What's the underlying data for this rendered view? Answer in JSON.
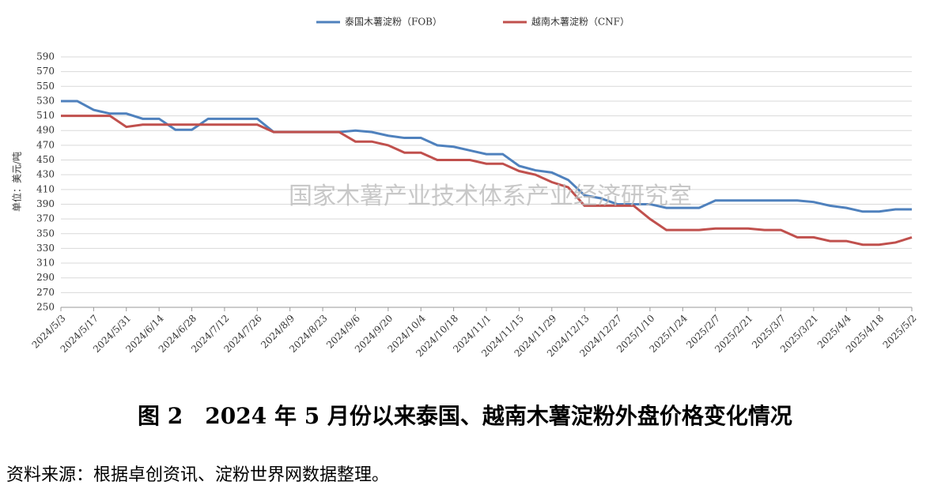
{
  "chart_data": {
    "type": "line",
    "y_label": "单位：美元/吨",
    "watermark": "国家木薯产业技术体系产业经济研究室",
    "categories": [
      "2024/5/3",
      null,
      "2024/5/17",
      null,
      "2024/5/31",
      null,
      "2024/6/14",
      null,
      "2024/6/28",
      null,
      "2024/7/12",
      null,
      "2024/7/26",
      null,
      "2024/8/9",
      null,
      "2024/8/23",
      null,
      "2024/9/6",
      null,
      "2024/9/20",
      null,
      "2024/10/4",
      null,
      "2024/10/18",
      null,
      "2024/11/1",
      null,
      "2024/11/15",
      null,
      "2024/11/29",
      null,
      "2024/12/13",
      null,
      "2024/12/27",
      null,
      "2025/1/10",
      null,
      "2025/1/24",
      null,
      "2025/2/7",
      null,
      "2025/2/21",
      null,
      "2025/3/7",
      null,
      "2025/3/21",
      null,
      "2025/4/4",
      null,
      "2025/4/18",
      null,
      "2025/5/2"
    ],
    "series": [
      {
        "name": "泰国木薯淀粉（FOB）",
        "color": "#4f81bd",
        "values": [
          530,
          530,
          518,
          513,
          513,
          506,
          506,
          491,
          491,
          506,
          506,
          506,
          506,
          488,
          488,
          488,
          488,
          488,
          490,
          488,
          483,
          480,
          480,
          470,
          468,
          463,
          458,
          458,
          442,
          436,
          433,
          423,
          402,
          398,
          390,
          390,
          390,
          385,
          385,
          385,
          395,
          395,
          395,
          395,
          395,
          395,
          393,
          388,
          385,
          380,
          380,
          383,
          383
        ]
      },
      {
        "name": "越南木薯淀粉（CNF）",
        "color": "#c0504d",
        "values": [
          510,
          510,
          510,
          510,
          495,
          498,
          498,
          498,
          498,
          498,
          498,
          498,
          498,
          488,
          488,
          488,
          488,
          488,
          475,
          475,
          470,
          460,
          460,
          450,
          450,
          450,
          445,
          445,
          435,
          430,
          420,
          413,
          388,
          388,
          388,
          388,
          370,
          355,
          355,
          355,
          357,
          357,
          357,
          355,
          355,
          345,
          345,
          340,
          340,
          335,
          335,
          338,
          345
        ]
      }
    ],
    "ylim": [
      250,
      590
    ],
    "yticks": [
      250,
      270,
      290,
      310,
      330,
      350,
      370,
      390,
      410,
      430,
      450,
      470,
      490,
      510,
      530,
      550,
      570,
      590
    ],
    "grid": true,
    "legend": "top"
  },
  "caption": "图 2　2024 年 5 月份以来泰国、越南木薯淀粉外盘价格变化情况",
  "source": "资料来源：根据卓创资讯、淀粉世界网数据整理。"
}
